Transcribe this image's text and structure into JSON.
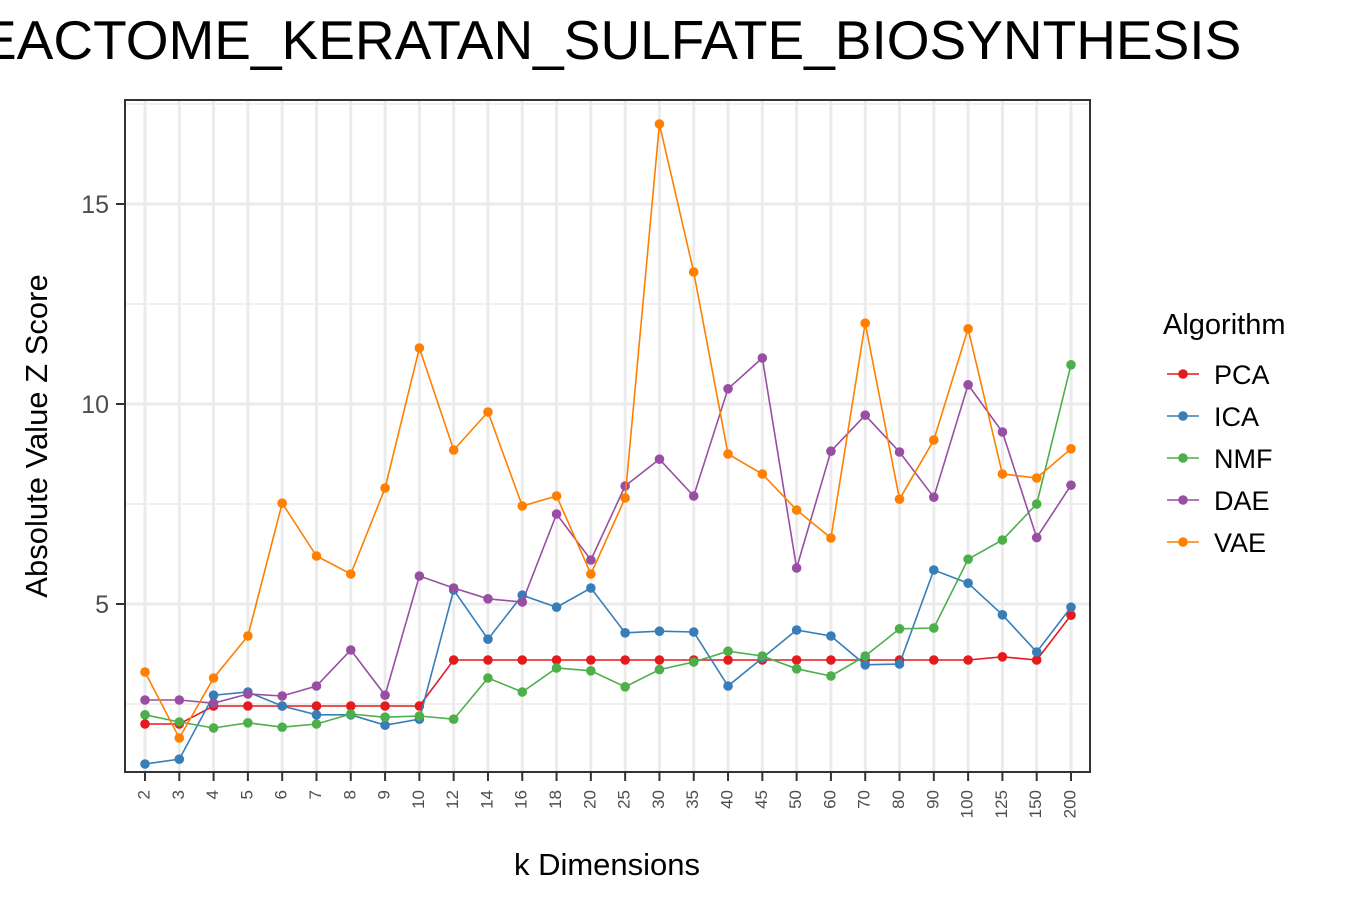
{
  "chart_data": {
    "type": "line",
    "title": "EACTOME_KERATAN_SULFATE_BIOSYNTHESIS",
    "xlabel": "k Dimensions",
    "ylabel": "Absolute Value Z Score",
    "x": [
      "2",
      "3",
      "4",
      "5",
      "6",
      "7",
      "8",
      "9",
      "10",
      "12",
      "14",
      "16",
      "18",
      "20",
      "25",
      "30",
      "35",
      "40",
      "45",
      "50",
      "60",
      "70",
      "80",
      "90",
      "100",
      "125",
      "150",
      "200"
    ],
    "ylim": [
      0.8,
      17.6
    ],
    "yticks": [
      5,
      10,
      15
    ],
    "grid": true,
    "legend": {
      "title": "Algorithm",
      "position": "right"
    },
    "series": [
      {
        "name": "PCA",
        "color": "#e41a1c",
        "values": [
          2.0,
          2.0,
          2.45,
          2.45,
          2.45,
          2.45,
          2.45,
          2.45,
          2.45,
          3.6,
          3.6,
          3.6,
          3.6,
          3.6,
          3.6,
          3.6,
          3.6,
          3.6,
          3.6,
          3.6,
          3.6,
          3.6,
          3.6,
          3.6,
          3.6,
          3.68,
          3.6,
          4.72
        ]
      },
      {
        "name": "ICA",
        "color": "#377eb8",
        "values": [
          1.0,
          1.12,
          2.72,
          2.8,
          2.45,
          2.23,
          2.23,
          1.97,
          2.12,
          5.35,
          4.12,
          5.22,
          4.92,
          5.4,
          4.28,
          4.32,
          4.3,
          2.95,
          3.65,
          4.35,
          4.2,
          3.48,
          3.5,
          5.85,
          5.52,
          4.73,
          3.8,
          4.92
        ]
      },
      {
        "name": "NMF",
        "color": "#4daf4a",
        "values": [
          2.23,
          2.05,
          1.9,
          2.03,
          1.92,
          2.0,
          2.25,
          2.17,
          2.2,
          2.12,
          3.15,
          2.8,
          3.4,
          3.33,
          2.93,
          3.36,
          3.55,
          3.82,
          3.7,
          3.38,
          3.2,
          3.7,
          4.38,
          4.4,
          6.12,
          6.6,
          7.5,
          10.98
        ]
      },
      {
        "name": "DAE",
        "color": "#984ea3",
        "values": [
          2.6,
          2.6,
          2.52,
          2.75,
          2.7,
          2.95,
          3.85,
          2.72,
          5.7,
          5.4,
          5.13,
          5.05,
          7.25,
          6.1,
          7.95,
          8.62,
          7.7,
          10.38,
          11.15,
          5.9,
          8.82,
          9.72,
          8.8,
          7.67,
          10.48,
          9.3,
          6.66,
          7.97
        ]
      },
      {
        "name": "VAE",
        "color": "#ff7f00",
        "values": [
          3.3,
          1.65,
          3.15,
          4.2,
          7.52,
          6.2,
          5.75,
          7.9,
          11.4,
          8.85,
          9.8,
          7.45,
          7.7,
          5.75,
          7.65,
          17.0,
          13.3,
          8.75,
          8.25,
          7.35,
          6.65,
          12.02,
          7.62,
          9.1,
          11.88,
          8.25,
          8.15,
          8.88
        ]
      }
    ]
  }
}
